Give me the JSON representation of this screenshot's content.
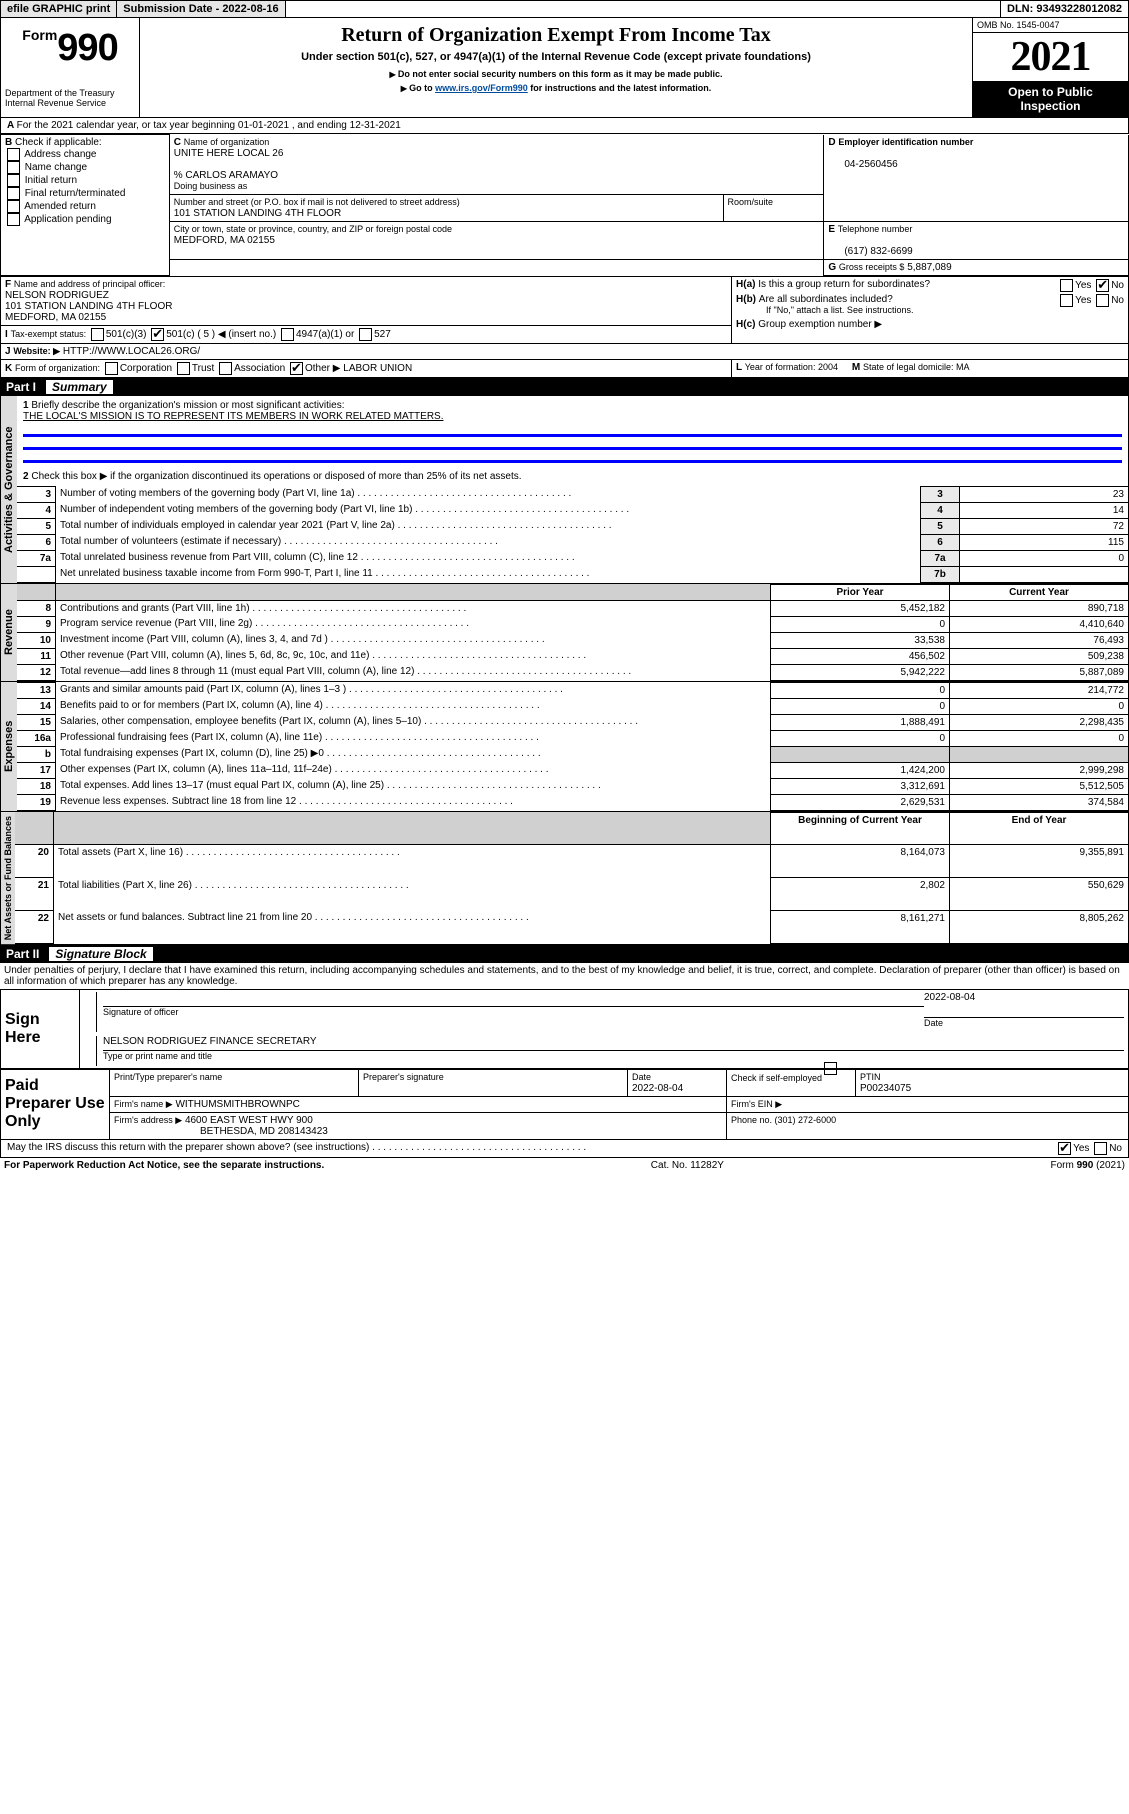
{
  "topbar": {
    "efile": "efile GRAPHIC print",
    "subdate_lbl": "Submission Date - 2022-08-16",
    "dln_lbl": "DLN: 93493228012082"
  },
  "hdr": {
    "form_prefix": "Form",
    "form_num": "990",
    "title": "Return of Organization Exempt From Income Tax",
    "sub": "Under section 501(c), 527, or 4947(a)(1) of the Internal Revenue Code (except private foundations)",
    "warn": "Do not enter social security numbers on this form as it may be made public.",
    "goto_pre": "Go to ",
    "goto_link": "www.irs.gov/Form990",
    "goto_post": " for instructions and the latest information.",
    "dept": "Department of the Treasury",
    "irs": "Internal Revenue Service",
    "omb": "OMB No. 1545-0047",
    "year": "2021",
    "open": "Open to Public Inspection"
  },
  "A": {
    "line": "For the 2021 calendar year, or tax year beginning 01-01-2021   , and ending 12-31-2021"
  },
  "B": {
    "label": "Check if applicable:",
    "items": [
      "Address change",
      "Name change",
      "Initial return",
      "Final return/terminated",
      "Amended return",
      "Application pending"
    ]
  },
  "C": {
    "name_lbl": "Name of organization",
    "name": "UNITE HERE LOCAL 26",
    "care": "% CARLOS ARAMAYO",
    "dba_lbl": "Doing business as",
    "addr_lbl": "Number and street (or P.O. box if mail is not delivered to street address)",
    "room_lbl": "Room/suite",
    "addr": "101 STATION LANDING 4TH FLOOR",
    "city_lbl": "City or town, state or province, country, and ZIP or foreign postal code",
    "city": "MEDFORD, MA  02155"
  },
  "D": {
    "lbl": "Employer identification number",
    "val": "04-2560456"
  },
  "E": {
    "lbl": "Telephone number",
    "val": "(617) 832-6699"
  },
  "G": {
    "lbl": "Gross receipts $",
    "val": "5,887,089"
  },
  "F": {
    "lbl": "Name and address of principal officer:",
    "name": "NELSON RODRIGUEZ",
    "addr": "101 STATION LANDING 4TH FLOOR",
    "city": "MEDFORD, MA  02155"
  },
  "H": {
    "a": "Is this a group return for subordinates?",
    "a_no": "No",
    "a_yes": "Yes",
    "b": "Are all subordinates included?",
    "b_yes": "Yes",
    "b_no": "No",
    "b_note": "If \"No,\" attach a list. See instructions.",
    "c": "Group exemption number ▶"
  },
  "I": {
    "lbl": "Tax-exempt status:",
    "o1": "501(c)(3)",
    "o2": "501(c) ( 5 ) ◀ (insert no.)",
    "o3": "4947(a)(1) or",
    "o4": "527"
  },
  "J": {
    "lbl": "Website: ▶",
    "val": "HTTP://WWW.LOCAL26.ORG/"
  },
  "K": {
    "lbl": "Form of organization:",
    "o1": "Corporation",
    "o2": "Trust",
    "o3": "Association",
    "o4": "Other ▶",
    "val": "LABOR UNION"
  },
  "L": {
    "lbl": "Year of formation: 2004"
  },
  "M": {
    "lbl": "State of legal domicile: MA"
  },
  "P1": {
    "bar": "Part I",
    "title": "Summary",
    "l1": "Briefly describe the organization's mission or most significant activities:",
    "l1v": "THE LOCAL'S MISSION IS TO REPRESENT ITS MEMBERS IN WORK RELATED MATTERS.",
    "l2": "Check this box ▶        if the organization discontinued its operations or disposed of more than 25% of its net assets.",
    "rows_a": [
      {
        "n": "3",
        "t": "Number of voting members of the governing body (Part VI, line 1a)",
        "c": "3",
        "v": "23"
      },
      {
        "n": "4",
        "t": "Number of independent voting members of the governing body (Part VI, line 1b)",
        "c": "4",
        "v": "14"
      },
      {
        "n": "5",
        "t": "Total number of individuals employed in calendar year 2021 (Part V, line 2a)",
        "c": "5",
        "v": "72"
      },
      {
        "n": "6",
        "t": "Total number of volunteers (estimate if necessary)",
        "c": "6",
        "v": "115"
      },
      {
        "n": "7a",
        "t": "Total unrelated business revenue from Part VIII, column (C), line 12",
        "c": "7a",
        "v": "0"
      },
      {
        "n": "",
        "t": "Net unrelated business taxable income from Form 990-T, Part I, line 11",
        "c": "7b",
        "v": ""
      }
    ],
    "prior": "Prior Year",
    "curr": "Current Year",
    "rows_r": [
      {
        "n": "8",
        "t": "Contributions and grants (Part VIII, line 1h)",
        "p": "5,452,182",
        "c": "890,718"
      },
      {
        "n": "9",
        "t": "Program service revenue (Part VIII, line 2g)",
        "p": "0",
        "c": "4,410,640"
      },
      {
        "n": "10",
        "t": "Investment income (Part VIII, column (A), lines 3, 4, and 7d )",
        "p": "33,538",
        "c": "76,493"
      },
      {
        "n": "11",
        "t": "Other revenue (Part VIII, column (A), lines 5, 6d, 8c, 9c, 10c, and 11e)",
        "p": "456,502",
        "c": "509,238"
      },
      {
        "n": "12",
        "t": "Total revenue—add lines 8 through 11 (must equal Part VIII, column (A), line 12)",
        "p": "5,942,222",
        "c": "5,887,089"
      }
    ],
    "rows_e": [
      {
        "n": "13",
        "t": "Grants and similar amounts paid (Part IX, column (A), lines 1–3 )",
        "p": "0",
        "c": "214,772"
      },
      {
        "n": "14",
        "t": "Benefits paid to or for members (Part IX, column (A), line 4)",
        "p": "0",
        "c": "0"
      },
      {
        "n": "15",
        "t": "Salaries, other compensation, employee benefits (Part IX, column (A), lines 5–10)",
        "p": "1,888,491",
        "c": "2,298,435"
      },
      {
        "n": "16a",
        "t": "Professional fundraising fees (Part IX, column (A), line 11e)",
        "p": "0",
        "c": "0"
      },
      {
        "n": "b",
        "t": "Total fundraising expenses (Part IX, column (D), line 25) ▶0",
        "p": "",
        "c": "",
        "shade": true
      },
      {
        "n": "17",
        "t": "Other expenses (Part IX, column (A), lines 11a–11d, 11f–24e)",
        "p": "1,424,200",
        "c": "2,999,298"
      },
      {
        "n": "18",
        "t": "Total expenses. Add lines 13–17 (must equal Part IX, column (A), line 25)",
        "p": "3,312,691",
        "c": "5,512,505"
      },
      {
        "n": "19",
        "t": "Revenue less expenses. Subtract line 18 from line 12",
        "p": "2,629,531",
        "c": "374,584"
      }
    ],
    "boy": "Beginning of Current Year",
    "eoy": "End of Year",
    "rows_n": [
      {
        "n": "20",
        "t": "Total assets (Part X, line 16)",
        "p": "8,164,073",
        "c": "9,355,891"
      },
      {
        "n": "21",
        "t": "Total liabilities (Part X, line 26)",
        "p": "2,802",
        "c": "550,629"
      },
      {
        "n": "22",
        "t": "Net assets or fund balances. Subtract line 21 from line 20",
        "p": "8,161,271",
        "c": "8,805,262"
      }
    ],
    "tabs": {
      "ag": "Activities & Governance",
      "rev": "Revenue",
      "exp": "Expenses",
      "na": "Net Assets or\nFund Balances"
    }
  },
  "P2": {
    "bar": "Part II",
    "title": "Signature Block",
    "decl": "Under penalties of perjury, I declare that I have examined this return, including accompanying schedules and statements, and to the best of my knowledge and belief, it is true, correct, and complete. Declaration of preparer (other than officer) is based on all information of which preparer has any knowledge.",
    "sign_here": "Sign Here",
    "sig_officer": "Signature of officer",
    "date": "Date",
    "sig_date": "2022-08-04",
    "name_title": "NELSON RODRIGUEZ  FINANCE SECRETARY",
    "typeprint": "Type or print name and title",
    "paid": "Paid Preparer Use Only",
    "prep_name_lbl": "Print/Type preparer's name",
    "prep_sig_lbl": "Preparer's signature",
    "prep_date_lbl": "Date",
    "prep_date": "2022-08-04",
    "check_if": "Check        if self-employed",
    "ptin_lbl": "PTIN",
    "ptin": "P00234075",
    "firm_name_lbl": "Firm's name    ▶",
    "firm_name": "WITHUMSMITHBROWNPC",
    "firm_ein_lbl": "Firm's EIN ▶",
    "firm_addr_lbl": "Firm's address ▶",
    "firm_addr": "4600 EAST WEST HWY 900",
    "firm_city": "BETHESDA, MD  208143423",
    "phone_lbl": "Phone no. (301) 272-6000",
    "may": "May the IRS discuss this return with the preparer shown above? (see instructions)",
    "may_yes": "Yes",
    "may_no": "No"
  },
  "foot": {
    "pra": "For Paperwork Reduction Act Notice, see the separate instructions.",
    "cat": "Cat. No. 11282Y",
    "form": "Form 990 (2021)"
  }
}
